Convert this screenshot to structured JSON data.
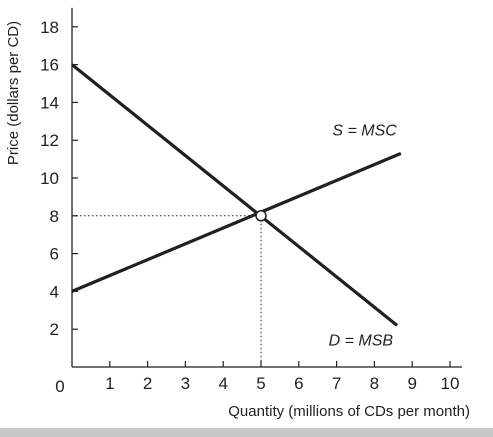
{
  "chart_data": {
    "type": "line",
    "title": "",
    "xlabel": "Quantity (millions of CDs per month)",
    "ylabel": "Price (dollars per CD)",
    "xlim": [
      0,
      10
    ],
    "ylim": [
      0,
      19
    ],
    "origin_label": "0",
    "x_ticks": [
      1,
      2,
      3,
      4,
      5,
      6,
      7,
      8,
      9,
      10
    ],
    "y_ticks": [
      2,
      4,
      6,
      8,
      10,
      12,
      14,
      16,
      18
    ],
    "grid": false,
    "series": [
      {
        "name": "S = MSC",
        "x": [
          0,
          8.7
        ],
        "y": [
          4,
          11.3
        ]
      },
      {
        "name": "D = MSB",
        "x": [
          0,
          8.6
        ],
        "y": [
          16,
          2.2
        ]
      }
    ],
    "equilibrium": {
      "x": 5,
      "y": 8
    },
    "colors": {
      "line": "#231f20",
      "guide": "#231f20",
      "footer": "#c8c8c8"
    }
  }
}
